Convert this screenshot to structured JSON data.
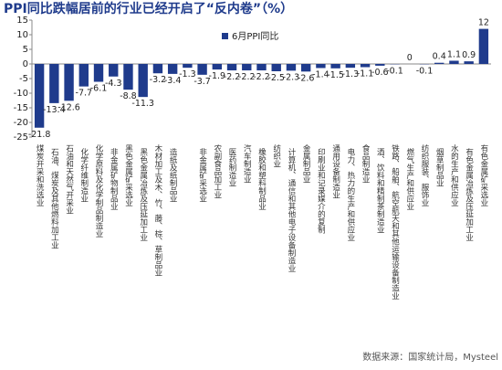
{
  "chart_data": {
    "type": "bar",
    "title": "PPI同比跌幅居前的行业已经开启了“反内卷”（%）",
    "source": "数据来源：国家统计局，Mysteel",
    "categories": [
      "煤炭开采和洗选业",
      "石油、煤炭及其他燃料加工业",
      "石油和天然气开采业",
      "化学纤维制造业",
      "化学原料及化学制品制造业",
      "非金属矿物制品业",
      "黑色金属矿采选业",
      "黑色金属冶炼及压延加工业",
      "木材加工及木、竹、藤、棕、草制品业",
      "造纸及纸制品业",
      null,
      "非金属矿采选业",
      "农副食品加工业",
      "医药制造业",
      "汽车制造业",
      "橡胶和塑料制品业",
      "纺织业",
      "计算机、通信和其他电子设备制造业",
      "金属制品业",
      "印刷业和记录媒介的复制",
      "通用设备制造业",
      "电力、热力的生产和供应业",
      "食品制造业",
      "酒、饮料和精制茶制造业",
      "铁路、船舶、航空航天和其他运输设备制造业",
      "燃气生产和供应业",
      "纺织服装、服饰业",
      "烟草制品业",
      "水的生产和供应业",
      "有色金属冶炼及压延加工业",
      "有色金属矿采选业"
    ],
    "series": [
      {
        "name": "6月PPI同比",
        "color": "#1f3b8c",
        "values": [
          -21.8,
          -13.4,
          -12.6,
          -7.7,
          -6.1,
          -4.3,
          -8.8,
          -11.3,
          -3.2,
          -3.4,
          -1.3,
          -3.7,
          -1.9,
          -2.2,
          -2.2,
          -2.2,
          -2.5,
          -2.3,
          -2.6,
          -1.4,
          -1.5,
          -1.3,
          -1.1,
          -0.6,
          -0.1,
          0,
          -0.1,
          0.4,
          1.1,
          0.9,
          12
        ]
      }
    ],
    "ylim": [
      -25,
      15
    ],
    "yticks": [
      -25,
      -20,
      -15,
      -10,
      -5,
      0,
      5,
      10,
      15
    ]
  }
}
